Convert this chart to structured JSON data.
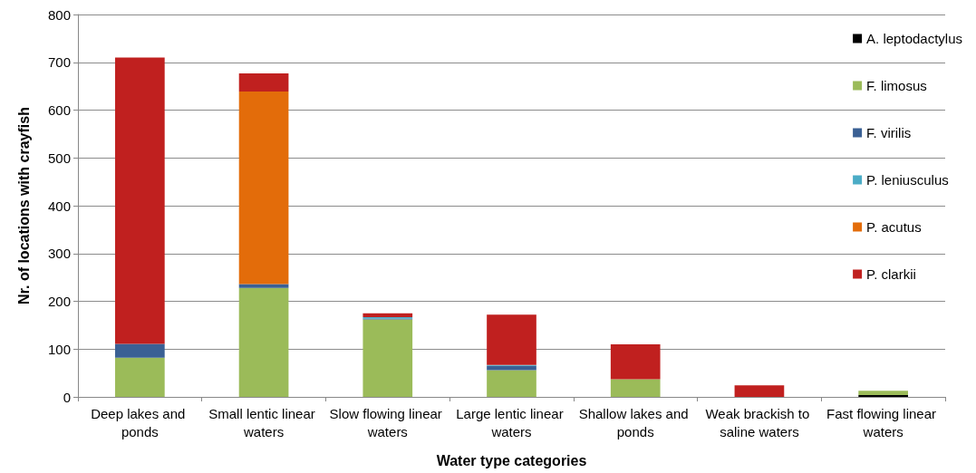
{
  "chart_data": {
    "type": "bar",
    "stacked": true,
    "xlabel": "Water type categories",
    "ylabel": "Nr. of locations with crayfish",
    "categories": [
      "Deep lakes and ponds",
      "Small lentic linear waters",
      "Slow flowing linear waters",
      "Large lentic linear waters",
      "Shallow lakes and ponds",
      "Weak brackish to saline waters",
      "Fast flowing linear waters"
    ],
    "series": [
      {
        "name": "A. leptodactylus",
        "color": "#000000",
        "values": [
          0,
          0,
          0,
          0,
          0,
          null,
          4
        ]
      },
      {
        "name": "F. limosus",
        "color": "#9bbb59",
        "values": [
          82,
          228,
          162,
          56,
          37,
          0,
          9
        ]
      },
      {
        "name": "F. virilis",
        "color": "#3a6094",
        "values": [
          29,
          8,
          2,
          9,
          0,
          0,
          0
        ]
      },
      {
        "name": "P. leniusculus",
        "color": "#4bacc6",
        "values": [
          0,
          0,
          3,
          2,
          null,
          0,
          0
        ]
      },
      {
        "name": "P. acutus",
        "color": "#e36c0a",
        "values": [
          0,
          403,
          0,
          0,
          0,
          0,
          0
        ]
      },
      {
        "name": "P. clarkii",
        "color": "#c0201f",
        "values": [
          599,
          38,
          8,
          105,
          73,
          24,
          null
        ]
      }
    ],
    "ylim": [
      0,
      800
    ],
    "yticks": [
      0,
      100,
      200,
      300,
      400,
      500,
      600,
      700,
      800
    ],
    "grid": "y",
    "legend": "right"
  }
}
